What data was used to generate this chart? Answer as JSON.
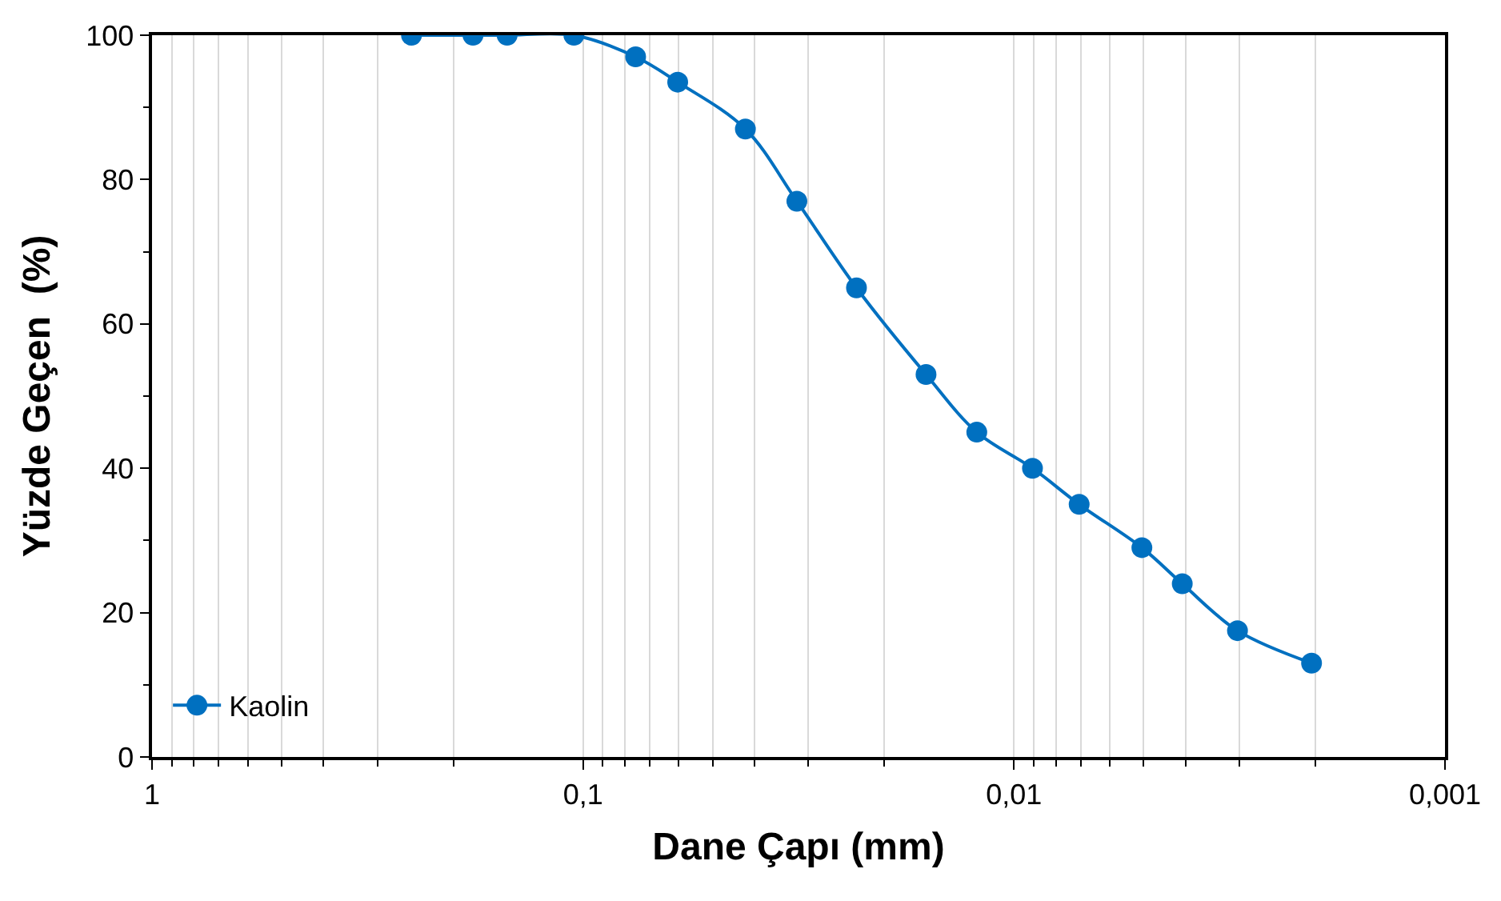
{
  "chart_data": {
    "type": "line",
    "xlabel": "Dane Çapı (mm)",
    "ylabel": "Yüzde Geçen  (%)",
    "log": "x",
    "xlim": [
      1,
      0.001
    ],
    "xticks": [
      {
        "value": 1,
        "label": "1"
      },
      {
        "value": 0.1,
        "label": "0,1"
      },
      {
        "value": 0.01,
        "label": "0,01"
      },
      {
        "value": 0.001,
        "label": "0,001"
      }
    ],
    "ylim": [
      0,
      100
    ],
    "yticks": [
      0,
      20,
      40,
      60,
      80,
      100
    ],
    "grid": "x",
    "legend": "bottom left",
    "marker": "circle",
    "line_style": "solid",
    "series": [
      {
        "name": "Kaolin",
        "color": "#0070c0",
        "x": [
          0.25,
          0.18,
          0.15,
          0.105,
          0.0755,
          0.0603,
          0.042,
          0.0319,
          0.0232,
          0.016,
          0.0122,
          0.00906,
          0.00706,
          0.00505,
          0.00407,
          0.00303,
          0.00204
        ],
        "values": [
          100,
          100,
          100,
          100,
          97,
          93.5,
          87,
          77,
          65,
          53,
          45,
          40,
          35,
          29,
          24,
          17.5,
          13
        ]
      }
    ]
  }
}
